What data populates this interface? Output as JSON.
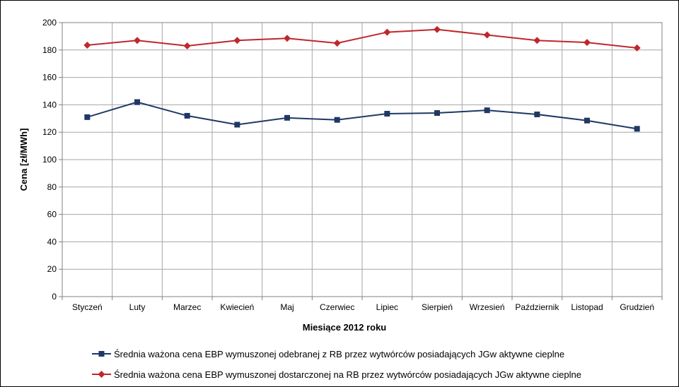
{
  "chart_data": {
    "type": "line",
    "title": "",
    "xlabel": "Miesiące 2012 roku",
    "ylabel": "Cena [zł/MWh]",
    "categories": [
      "Styczeń",
      "Luty",
      "Marzec",
      "Kwiecień",
      "Maj",
      "Czerwiec",
      "Lipiec",
      "Sierpień",
      "Wrzesień",
      "Październik",
      "Listopad",
      "Grudzień"
    ],
    "ylim": [
      0,
      200
    ],
    "yticks": [
      0,
      20,
      40,
      60,
      80,
      100,
      120,
      140,
      160,
      180,
      200
    ],
    "grid": true,
    "legend_position": "bottom",
    "series": [
      {
        "name": "Średnia ważona cena EBP wymuszonej odebranej z RB przez wytwórców posiadających JGw aktywne cieplne",
        "marker": "square",
        "color": "#1f3864",
        "values": [
          131,
          142,
          132,
          125.5,
          130.5,
          129,
          133.5,
          134,
          136,
          133,
          128.5,
          122.5
        ]
      },
      {
        "name": "Średnia ważona cena EBP wymuszonej dostarczonej na RB przez wytwórców posiadających JGw aktywne cieplne",
        "marker": "diamond",
        "color": "#c0272d",
        "values": [
          183.5,
          187,
          183,
          187,
          188.5,
          185,
          193,
          195,
          191,
          187,
          185.5,
          181.5
        ]
      }
    ]
  }
}
